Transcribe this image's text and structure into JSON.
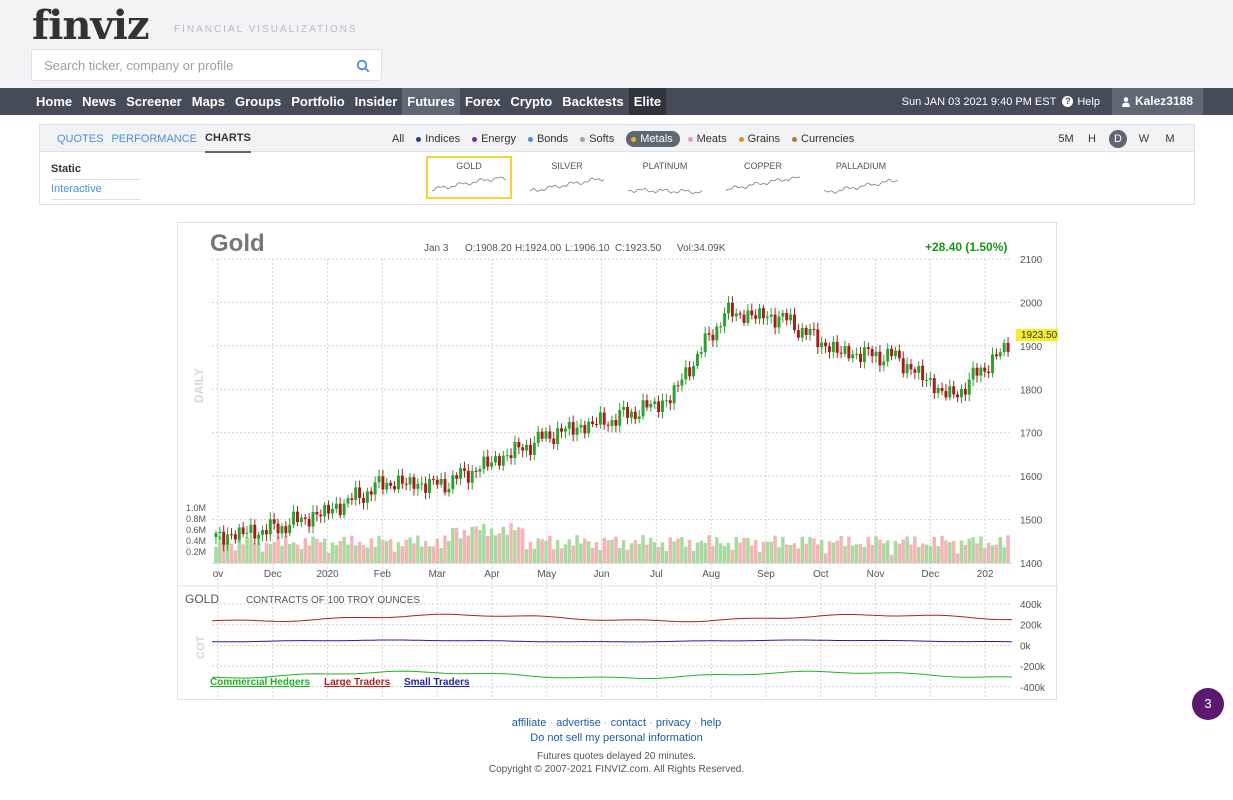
{
  "brand": {
    "logo": "finviz",
    "logo_dot": "",
    "tagline": "FINANCIAL VISUALIZATIONS"
  },
  "search": {
    "placeholder": "Search ticker, company or profile"
  },
  "nav": {
    "items": [
      "Home",
      "News",
      "Screener",
      "Maps",
      "Groups",
      "Portfolio",
      "Insider",
      "Futures",
      "Forex",
      "Crypto",
      "Backtests",
      "Elite"
    ],
    "active": "Futures",
    "datetime": "Sun JAN 03 2021 9:40 PM EST",
    "help": "Help",
    "user": "Kalez3188"
  },
  "subtabs": [
    "QUOTES",
    "PERFORMANCE",
    "CHARTS"
  ],
  "categories": [
    {
      "label": "All",
      "bullet": ""
    },
    {
      "label": "Indices",
      "bullet": "#2b3a8c"
    },
    {
      "label": "Energy",
      "bullet": "#7a2fa0"
    },
    {
      "label": "Bonds",
      "bullet": "#4a90d9"
    },
    {
      "label": "Softs",
      "bullet": "#a0a0a0"
    },
    {
      "label": "Metals",
      "bullet": "#e9b520"
    },
    {
      "label": "Meats",
      "bullet": "#e89ac7"
    },
    {
      "label": "Grains",
      "bullet": "#e88a20"
    },
    {
      "label": "Currencies",
      "bullet": "#b07a3a"
    }
  ],
  "timeframes": [
    "5M",
    "H",
    "D",
    "W",
    "M"
  ],
  "chart_types": {
    "static": "Static",
    "interactive": "Interactive"
  },
  "minis": [
    "GOLD",
    "SILVER",
    "PLATINUM",
    "COPPER",
    "PALLADIUM"
  ],
  "chart_header": {
    "title": "Gold",
    "date": "Jan 3",
    "open": "O:1908.20",
    "high": "H:1924.00",
    "low": "L:1906.10",
    "close": "C:1923.50",
    "volume": "Vol:34.09K",
    "change": "+28.40 (1.50%)",
    "last_price_label": "1923.50",
    "side_label": "DAILY"
  },
  "chart_data": {
    "type": "candlestick",
    "x_ticks": [
      "ov",
      "Dec",
      "2020",
      "Feb",
      "Mar",
      "Apr",
      "May",
      "Jun",
      "Jul",
      "Aug",
      "Sep",
      "Oct",
      "Nov",
      "Dec",
      "202"
    ],
    "y_ticks": [
      2100,
      2000,
      1900,
      1800,
      1700,
      1600,
      1500,
      1400
    ],
    "ylim": [
      1400,
      2100
    ],
    "volume_ticks": [
      "1.0M",
      "0.8M",
      "0.6M",
      "0.4M",
      "0.2M"
    ],
    "monthly_closes": [
      1460,
      1478,
      1520,
      1585,
      1580,
      1640,
      1700,
      1730,
      1775,
      1975,
      1965,
      1885,
      1875,
      1780,
      1900
    ],
    "last": 1923.5,
    "colors": {
      "up": "#2da12d",
      "down": "#a61c1c"
    }
  },
  "cot": {
    "title": "GOLD",
    "subtitle": "CONTRACTS OF 100 TROY OUNCES",
    "side_label": "COT",
    "y_ticks": [
      "400k",
      "200k",
      "0k",
      "-200k",
      "-400k"
    ],
    "legend": [
      {
        "name": "Commercial Hedgers",
        "color": "#22b122"
      },
      {
        "name": "Large Traders",
        "color": "#b21f1f"
      },
      {
        "name": "Small Traders",
        "color": "#1f1fa8"
      }
    ]
  },
  "footer": {
    "links": [
      "affiliate",
      "advertise",
      "contact",
      "privacy",
      "help"
    ],
    "dnsmpi": "Do not sell my personal information",
    "delay": "Futures quotes delayed 20 minutes.",
    "copyright": "Copyright © 2007-2021 FINVIZ.com. All Rights Reserved."
  },
  "badge": "3"
}
